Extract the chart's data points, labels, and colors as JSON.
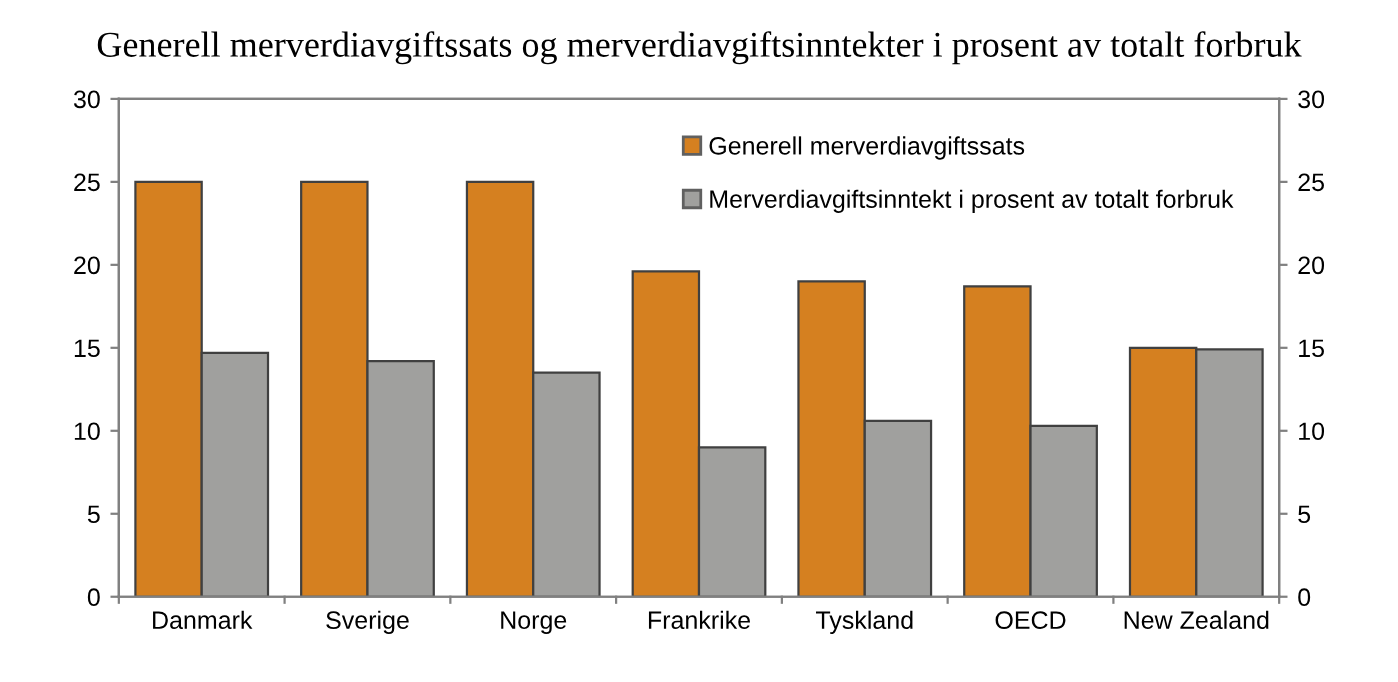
{
  "chart_data": {
    "type": "bar",
    "title": "Generell merverdiavgiftssats og merverdiavgiftsinntekter i prosent av totalt forbruk",
    "categories": [
      "Danmark",
      "Sverige",
      "Norge",
      "Frankrike",
      "Tyskland",
      "OECD",
      "New Zealand"
    ],
    "series": [
      {
        "name": "Generell merverdiavgiftssats",
        "color": "#d58020",
        "values": [
          25,
          25,
          25,
          19.6,
          19,
          18.7,
          15
        ]
      },
      {
        "name": "Merverdiavgiftsinntekt i prosent av totalt forbruk",
        "color": "#a0a09e",
        "values": [
          14.7,
          14.2,
          13.5,
          9,
          10.6,
          10.3,
          14.9
        ]
      }
    ],
    "ylim": [
      0,
      30
    ],
    "yticks": [
      0,
      5,
      10,
      15,
      20,
      25,
      30
    ],
    "y2lim": [
      0,
      30
    ],
    "y2ticks": [
      0,
      5,
      10,
      15,
      20,
      25,
      30
    ],
    "grid": false,
    "legend": "top right"
  }
}
